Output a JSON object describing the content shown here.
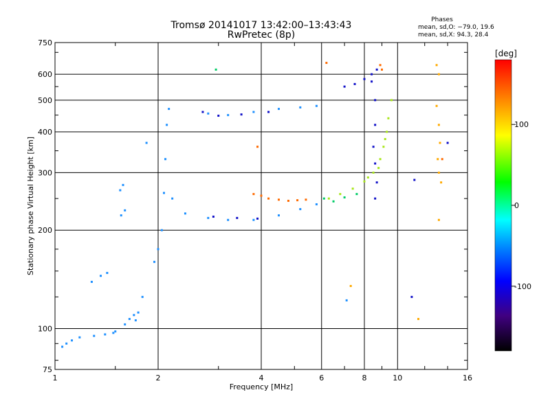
{
  "chart_data": {
    "type": "scatter",
    "title": "Tromsø 20141017 13:42:00–13:43:43",
    "subtitle": "RwPretec (8p)",
    "xlabel": "Frequency [MHz]",
    "ylabel": "Stationary phase Virtual Height [km]",
    "x_scale": "log",
    "y_scale": "log",
    "xlim": [
      1,
      16
    ],
    "ylim": [
      75,
      750
    ],
    "x_ticks": [
      1,
      2,
      4,
      6,
      8,
      10,
      16
    ],
    "y_ticks": [
      75,
      100,
      200,
      300,
      400,
      500,
      600,
      750
    ],
    "grid": true,
    "phase_stats": {
      "heading": "Phases",
      "o_line": "mean, sd,O: −79.0, 19.6",
      "x_line": "mean, sd,X:  94.3, 28.4"
    },
    "colorbar": {
      "label": "[deg]",
      "range": [
        -180,
        180
      ],
      "ticks": [
        100,
        0,
        -100
      ],
      "colors": [
        "#ff0000",
        "#ff8000",
        "#ffff00",
        "#00ff00",
        "#00ffff",
        "#0080ff",
        "#0000ff",
        "#400080",
        "#000000"
      ]
    },
    "series": [
      {
        "points": [
          [
            1.05,
            88
          ],
          [
            1.08,
            90
          ],
          [
            1.12,
            92
          ],
          [
            1.18,
            94
          ],
          [
            1.3,
            95
          ],
          [
            1.4,
            96
          ],
          [
            1.48,
            97
          ],
          [
            1.5,
            98
          ],
          [
            1.28,
            139
          ],
          [
            1.36,
            145
          ],
          [
            1.42,
            148
          ],
          [
            1.55,
            265
          ],
          [
            1.58,
            275
          ],
          [
            1.56,
            222
          ],
          [
            1.6,
            230
          ],
          [
            1.6,
            103
          ],
          [
            1.65,
            107
          ],
          [
            1.7,
            110
          ],
          [
            1.75,
            112
          ],
          [
            1.72,
            106
          ],
          [
            1.8,
            125
          ],
          [
            1.85,
            370
          ],
          [
            1.95,
            160
          ],
          [
            2.0,
            175
          ],
          [
            2.05,
            200
          ],
          [
            2.08,
            260
          ],
          [
            2.1,
            330
          ],
          [
            2.12,
            420
          ],
          [
            2.15,
            470
          ],
          [
            2.2,
            250
          ],
          [
            2.4,
            225
          ],
          [
            2.8,
            218
          ],
          [
            3.2,
            215
          ],
          [
            3.8,
            215
          ],
          [
            4.5,
            222
          ],
          [
            5.2,
            232
          ],
          [
            5.8,
            240
          ],
          [
            2.8,
            455
          ],
          [
            3.2,
            450
          ],
          [
            3.8,
            460
          ],
          [
            4.5,
            470
          ],
          [
            5.2,
            475
          ],
          [
            5.8,
            480
          ],
          [
            7.1,
            122
          ]
        ]
      },
      {
        "points": [
          [
            2.9,
            220
          ],
          [
            3.4,
            218
          ],
          [
            3.9,
            217
          ],
          [
            2.7,
            460
          ],
          [
            3.0,
            448
          ],
          [
            3.5,
            452
          ],
          [
            4.2,
            460
          ],
          [
            7.0,
            550
          ],
          [
            7.5,
            560
          ],
          [
            8.0,
            580
          ],
          [
            8.4,
            600
          ],
          [
            8.7,
            620
          ],
          [
            8.6,
            250
          ],
          [
            8.7,
            280
          ],
          [
            8.6,
            320
          ],
          [
            8.5,
            360
          ],
          [
            8.6,
            420
          ],
          [
            8.6,
            500
          ],
          [
            8.4,
            570
          ],
          [
            11.0,
            125
          ],
          [
            11.2,
            285
          ],
          [
            14.0,
            370
          ]
        ]
      },
      {
        "points": [
          [
            3.8,
            258
          ],
          [
            4.0,
            255
          ],
          [
            4.2,
            250
          ],
          [
            4.5,
            248
          ],
          [
            4.8,
            246
          ],
          [
            5.1,
            247
          ],
          [
            5.4,
            248
          ],
          [
            3.9,
            360
          ],
          [
            8.9,
            640
          ],
          [
            9.0,
            620
          ],
          [
            13.5,
            330
          ],
          [
            6.2,
            650
          ]
        ]
      },
      {
        "points": [
          [
            6.3,
            250
          ],
          [
            6.8,
            258
          ],
          [
            7.4,
            268
          ],
          [
            8.0,
            282
          ],
          [
            8.5,
            300
          ],
          [
            8.9,
            330
          ],
          [
            9.1,
            360
          ],
          [
            9.3,
            400
          ],
          [
            9.4,
            440
          ],
          [
            9.6,
            500
          ],
          [
            9.2,
            380
          ],
          [
            8.8,
            310
          ],
          [
            8.2,
            290
          ]
        ]
      },
      {
        "points": [
          [
            13.0,
            640
          ],
          [
            13.2,
            600
          ],
          [
            13.0,
            480
          ],
          [
            13.2,
            420
          ],
          [
            13.3,
            370
          ],
          [
            13.1,
            330
          ],
          [
            13.2,
            300
          ],
          [
            13.4,
            280
          ],
          [
            13.2,
            215
          ],
          [
            11.5,
            107
          ],
          [
            7.3,
            135
          ]
        ]
      },
      {
        "points": [
          [
            2.95,
            620
          ],
          [
            6.1,
            250
          ],
          [
            6.5,
            245
          ],
          [
            7.0,
            252
          ],
          [
            7.6,
            258
          ]
        ]
      }
    ]
  }
}
